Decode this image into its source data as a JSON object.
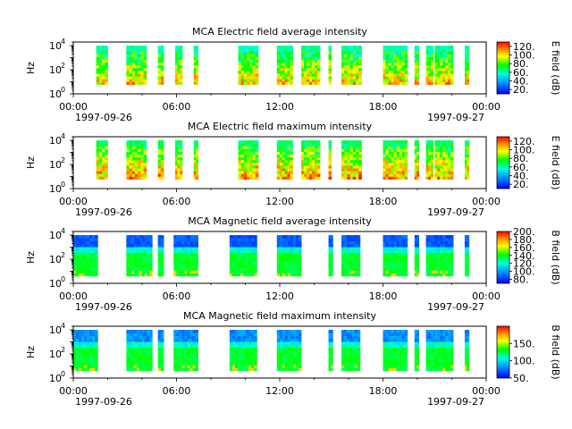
{
  "chart_data": [
    {
      "type": "heatmap",
      "title": "MCA  Electric field average intensity",
      "ylabel": "Hz",
      "yscale": "log",
      "ylim": [
        1,
        20000
      ],
      "y_ticks": [
        {
          "exp": "0"
        },
        {
          "exp": "2"
        },
        {
          "exp": "4"
        }
      ],
      "xlim": [
        "1997-09-26 00:00",
        "1997-09-27 00:00"
      ],
      "x_ticks": [
        "00:00",
        "06:00",
        "12:00",
        "18:00",
        "00:00"
      ],
      "x_date_start": "1997-09-26",
      "x_date_end": "1997-09-27",
      "colorbar": {
        "label": "E field (dB)",
        "min": 10,
        "max": 130,
        "ticks": [
          "120.",
          "100.",
          "80.",
          "60.",
          "40.",
          "20."
        ],
        "tick_values": [
          120,
          100,
          80,
          60,
          40,
          20
        ]
      },
      "data_intervals": [
        [
          "01:20",
          "02:00"
        ],
        [
          "03:05",
          "04:15"
        ],
        [
          "04:55",
          "05:15"
        ],
        [
          "05:55",
          "06:20"
        ],
        [
          "07:00",
          "07:15"
        ],
        [
          "09:35",
          "10:45"
        ],
        [
          "11:50",
          "12:45"
        ],
        [
          "13:15",
          "14:20"
        ],
        [
          "14:50",
          "15:00"
        ],
        [
          "15:35",
          "16:45"
        ],
        [
          "18:00",
          "19:25"
        ],
        [
          "19:50",
          "20:05"
        ],
        [
          "20:30",
          "20:55"
        ],
        [
          "21:00",
          "22:05"
        ],
        [
          "22:45",
          "23:00"
        ]
      ],
      "field": "electric",
      "mode": "average"
    },
    {
      "type": "heatmap",
      "title": "MCA  Electric field maximum intensity",
      "ylabel": "Hz",
      "yscale": "log",
      "ylim": [
        1,
        20000
      ],
      "y_ticks": [
        {
          "exp": "0"
        },
        {
          "exp": "2"
        },
        {
          "exp": "4"
        }
      ],
      "xlim": [
        "1997-09-26 00:00",
        "1997-09-27 00:00"
      ],
      "x_ticks": [
        "00:00",
        "06:00",
        "12:00",
        "18:00",
        "00:00"
      ],
      "x_date_start": "1997-09-26",
      "x_date_end": "1997-09-27",
      "colorbar": {
        "label": "E field (dB)",
        "min": 10,
        "max": 130,
        "ticks": [
          "120.",
          "100.",
          "80.",
          "60.",
          "40.",
          "20."
        ],
        "tick_values": [
          120,
          100,
          80,
          60,
          40,
          20
        ]
      },
      "data_intervals": [
        [
          "01:20",
          "02:00"
        ],
        [
          "03:05",
          "04:15"
        ],
        [
          "04:55",
          "05:15"
        ],
        [
          "05:55",
          "06:20"
        ],
        [
          "07:00",
          "07:15"
        ],
        [
          "09:35",
          "10:45"
        ],
        [
          "11:50",
          "12:45"
        ],
        [
          "13:15",
          "14:20"
        ],
        [
          "14:50",
          "15:00"
        ],
        [
          "15:35",
          "16:45"
        ],
        [
          "18:00",
          "19:25"
        ],
        [
          "19:50",
          "20:05"
        ],
        [
          "20:30",
          "20:55"
        ],
        [
          "21:00",
          "22:05"
        ],
        [
          "22:45",
          "23:00"
        ]
      ],
      "field": "electric",
      "mode": "maximum"
    },
    {
      "type": "heatmap",
      "title": "MCA  Magnetic field average intensity",
      "ylabel": "Hz",
      "yscale": "log",
      "ylim": [
        1,
        20000
      ],
      "y_ticks": [
        {
          "exp": "0"
        },
        {
          "exp": "2"
        },
        {
          "exp": "4"
        }
      ],
      "xlim": [
        "1997-09-26 00:00",
        "1997-09-27 00:00"
      ],
      "x_ticks": [
        "00:00",
        "06:00",
        "12:00",
        "18:00",
        "00:00"
      ],
      "x_date_start": "1997-09-26",
      "x_date_end": "1997-09-27",
      "colorbar": {
        "label": "B field (dB)",
        "min": 70,
        "max": 200,
        "ticks": [
          "200.",
          "180.",
          "160.",
          "140.",
          "120.",
          "100.",
          "80."
        ],
        "tick_values": [
          200,
          180,
          160,
          140,
          120,
          100,
          80
        ]
      },
      "data_intervals": [
        [
          "00:00",
          "01:25"
        ],
        [
          "03:05",
          "04:35"
        ],
        [
          "04:55",
          "05:15"
        ],
        [
          "05:50",
          "07:15"
        ],
        [
          "09:05",
          "10:40"
        ],
        [
          "11:50",
          "13:15"
        ],
        [
          "14:50",
          "15:05"
        ],
        [
          "15:35",
          "16:40"
        ],
        [
          "18:00",
          "19:25"
        ],
        [
          "19:50",
          "20:05"
        ],
        [
          "20:30",
          "21:05"
        ],
        [
          "21:00",
          "22:05"
        ],
        [
          "22:45",
          "23:00"
        ]
      ],
      "field": "magnetic",
      "mode": "average"
    },
    {
      "type": "heatmap",
      "title": "MCA  Magnetic field maximum intensity",
      "ylabel": "Hz",
      "yscale": "log",
      "ylim": [
        1,
        20000
      ],
      "y_ticks": [
        {
          "exp": "0"
        },
        {
          "exp": "2"
        },
        {
          "exp": "4"
        }
      ],
      "xlim": [
        "1997-09-26 00:00",
        "1997-09-27 00:00"
      ],
      "x_ticks": [
        "00:00",
        "06:00",
        "12:00",
        "18:00",
        "00:00"
      ],
      "x_date_start": "1997-09-26",
      "x_date_end": "1997-09-27",
      "colorbar": {
        "label": "B field (dB)",
        "min": 50,
        "max": 200,
        "ticks": [
          "150.",
          "100.",
          "50."
        ],
        "tick_values": [
          150,
          100,
          50
        ]
      },
      "data_intervals": [
        [
          "00:00",
          "01:25"
        ],
        [
          "03:05",
          "04:35"
        ],
        [
          "04:55",
          "05:15"
        ],
        [
          "05:50",
          "07:15"
        ],
        [
          "09:05",
          "10:40"
        ],
        [
          "11:50",
          "13:15"
        ],
        [
          "14:50",
          "15:05"
        ],
        [
          "15:35",
          "16:40"
        ],
        [
          "18:00",
          "19:25"
        ],
        [
          "19:50",
          "20:05"
        ],
        [
          "20:30",
          "21:05"
        ],
        [
          "21:00",
          "22:05"
        ],
        [
          "22:45",
          "23:00"
        ]
      ],
      "field": "magnetic",
      "mode": "maximum"
    }
  ]
}
